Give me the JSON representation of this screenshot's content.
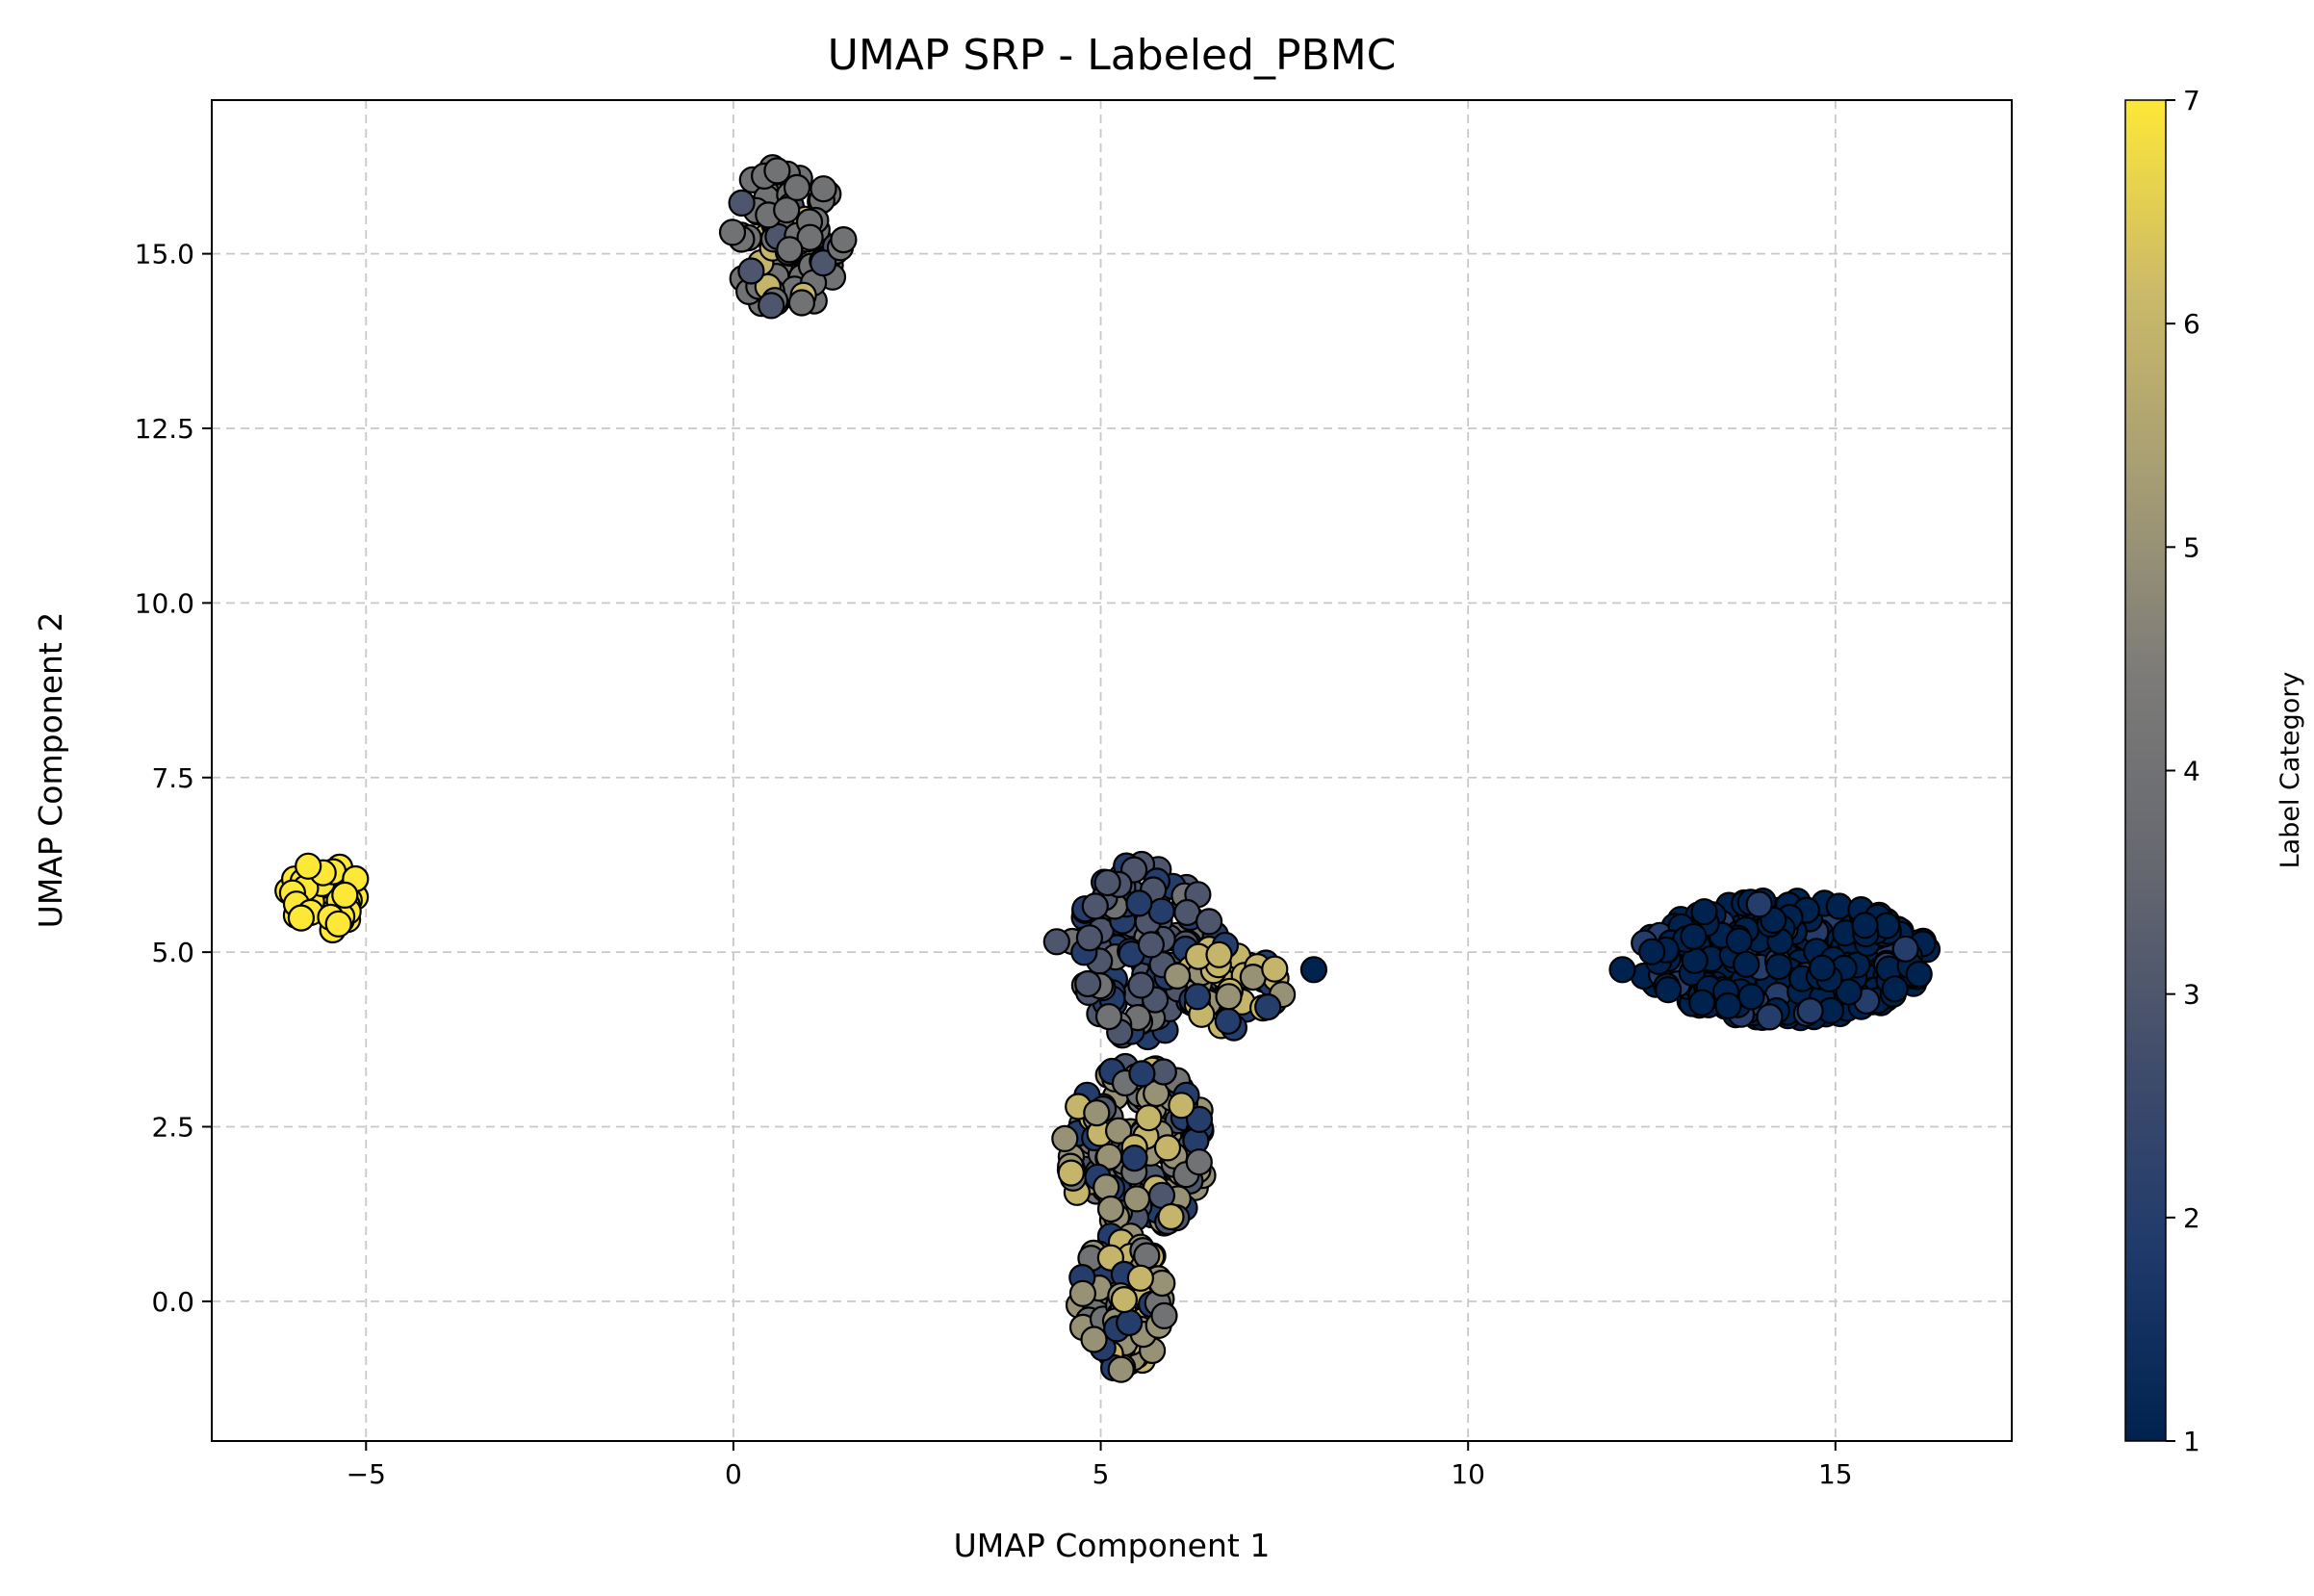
{
  "chart_data": {
    "type": "scatter",
    "title": "UMAP SRP - Labeled_PBMC",
    "xlabel": "UMAP Component 1",
    "ylabel": "UMAP Component 2",
    "xlim": [
      -7.1,
      17.4
    ],
    "ylim": [
      -2.0,
      17.2
    ],
    "x_ticks": [
      -5,
      0,
      5,
      10,
      15
    ],
    "x_tick_labels": [
      "−5",
      "0",
      "5",
      "10",
      "15"
    ],
    "y_ticks": [
      0.0,
      2.5,
      5.0,
      7.5,
      10.0,
      12.5,
      15.0
    ],
    "y_tick_labels": [
      "0.0",
      "2.5",
      "5.0",
      "7.5",
      "10.0",
      "12.5",
      "15.0"
    ],
    "grid": true,
    "colormap": "cividis",
    "colormap_stops": [
      "#00224e",
      "#1f3a6b",
      "#414d6b",
      "#666870",
      "#7c7b78",
      "#a59c74",
      "#cbba69",
      "#fde737"
    ],
    "marker_edge_color": "#000000",
    "colorbar": {
      "label": "Label Category",
      "range": [
        1,
        7
      ],
      "ticks": [
        1,
        2,
        3,
        4,
        5,
        6,
        7
      ],
      "tick_labels": [
        "1",
        "2",
        "3",
        "4",
        "5",
        "6",
        "7"
      ]
    },
    "clusters": [
      {
        "center": [
          -5.6,
          5.8
        ],
        "radius": [
          0.55,
          0.5
        ],
        "count": 40,
        "dominant_label": 7,
        "label_mix": [
          7
        ]
      },
      {
        "center": [
          0.75,
          15.2
        ],
        "radius": [
          0.8,
          1.1
        ],
        "count": 90,
        "dominant_label": 4,
        "label_mix": [
          4,
          4,
          4,
          4,
          3,
          4,
          6
        ]
      },
      {
        "center": [
          5.6,
          5.0
        ],
        "radius": [
          1.0,
          1.3
        ],
        "count": 130,
        "dominant_label": 3,
        "label_mix": [
          3,
          3,
          2,
          2,
          3,
          4
        ]
      },
      {
        "center": [
          6.7,
          4.5
        ],
        "radius": [
          0.8,
          0.6
        ],
        "count": 45,
        "dominant_label": 6,
        "label_mix": [
          6,
          6,
          5,
          2
        ]
      },
      {
        "center": [
          5.5,
          2.2
        ],
        "radius": [
          1.0,
          1.2
        ],
        "count": 160,
        "dominant_label": 5,
        "label_mix": [
          2,
          3,
          5,
          5,
          6,
          4
        ]
      },
      {
        "center": [
          5.3,
          0.0
        ],
        "radius": [
          0.6,
          1.0
        ],
        "count": 90,
        "dominant_label": 5,
        "label_mix": [
          5,
          5,
          4,
          2,
          6
        ]
      },
      {
        "center": [
          14.3,
          4.9
        ],
        "radius": [
          2.0,
          0.85
        ],
        "count": 330,
        "dominant_label": 1,
        "label_mix": [
          1,
          1,
          1,
          1,
          1,
          1,
          2
        ]
      }
    ],
    "outliers": [
      {
        "x": 7.9,
        "y": 4.75,
        "label": 1
      },
      {
        "x": 12.1,
        "y": 4.75,
        "label": 1
      },
      {
        "x": 1.5,
        "y": 15.2,
        "label": 4
      },
      {
        "x": 4.4,
        "y": 5.15,
        "label": 3
      }
    ]
  }
}
